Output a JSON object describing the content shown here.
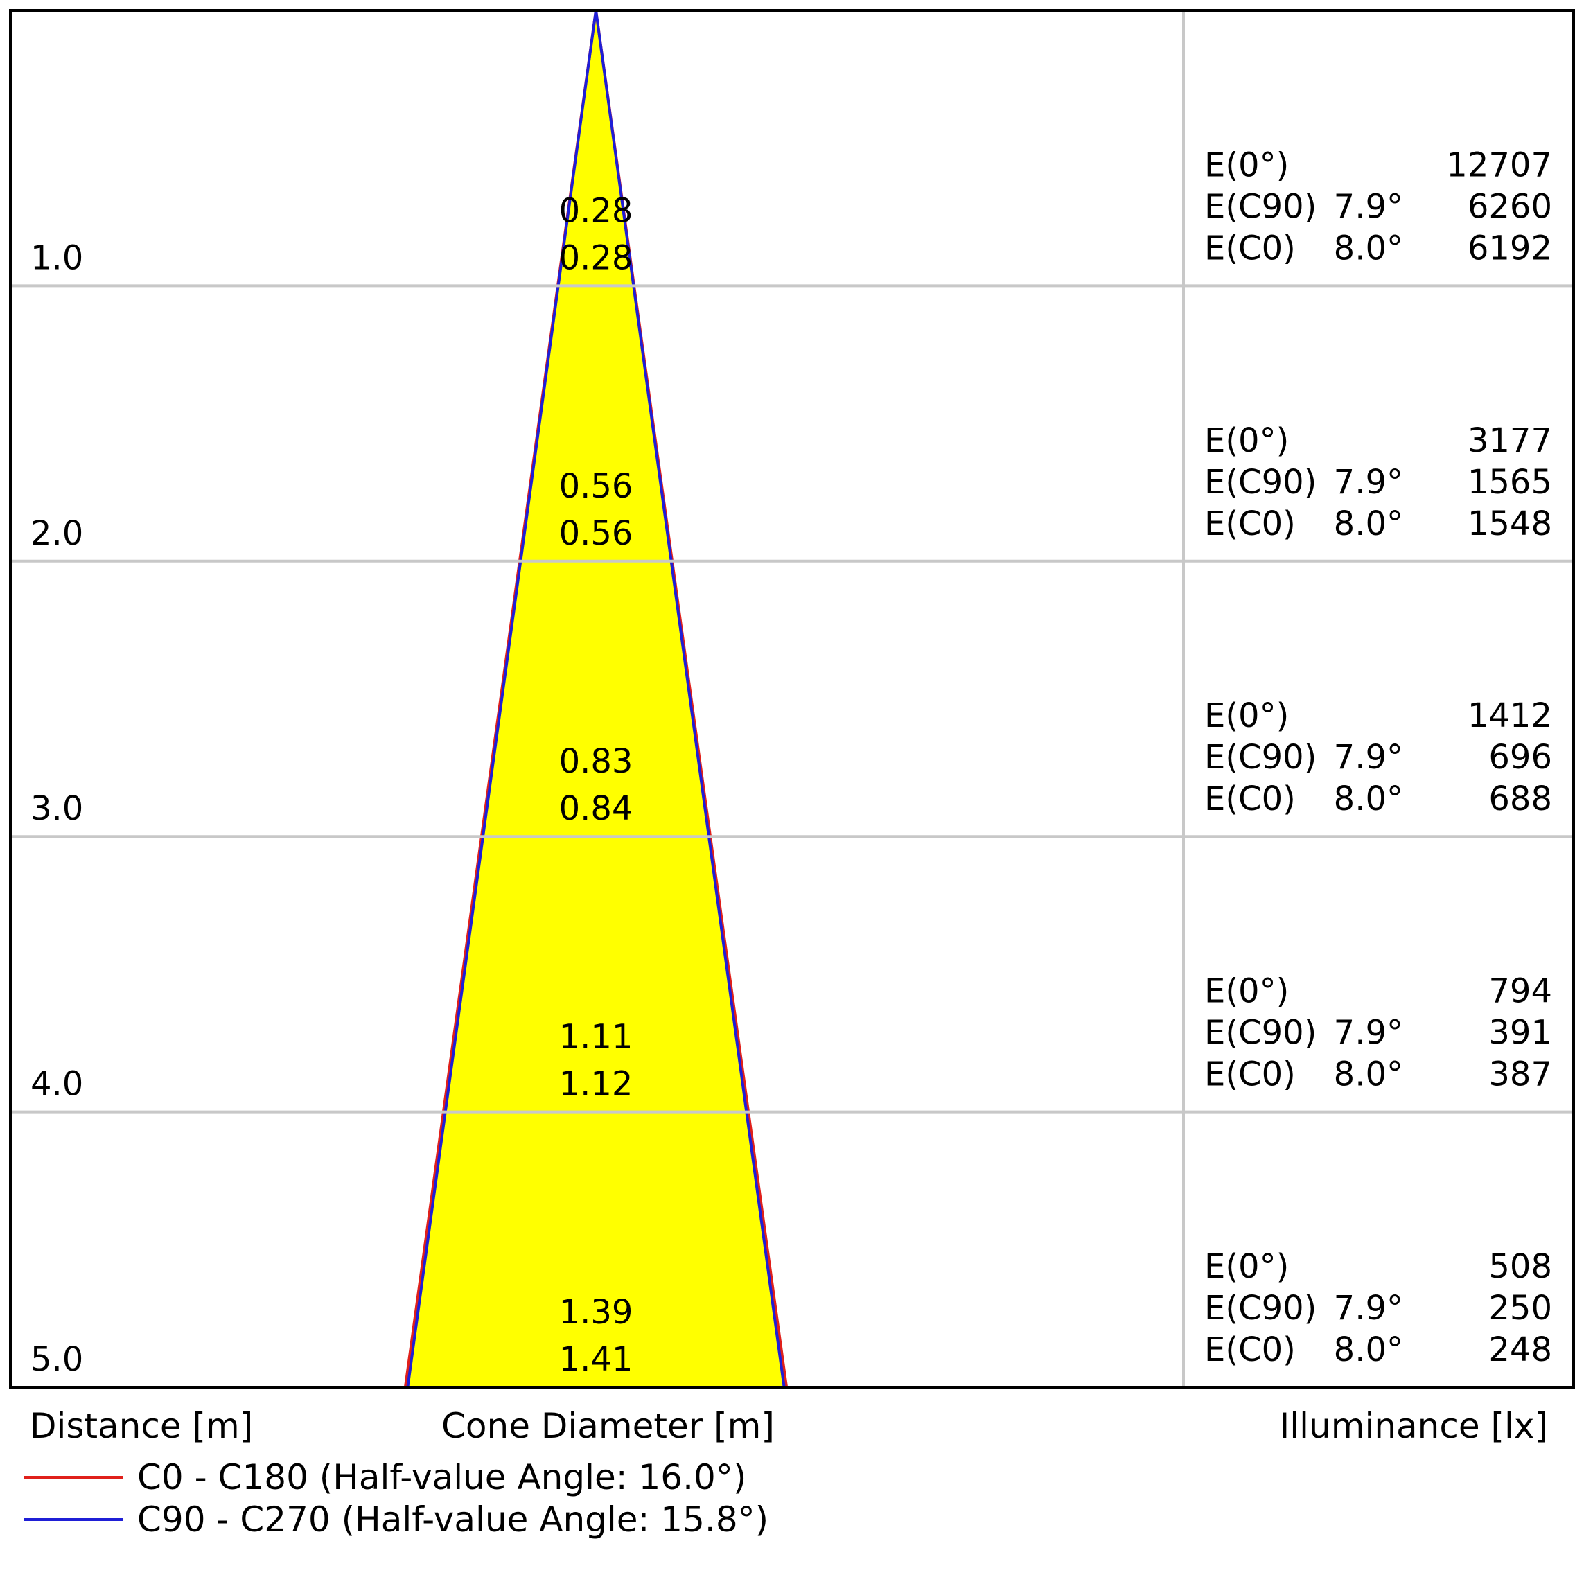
{
  "chart_data": {
    "type": "cone",
    "x_label": "Distance [m]",
    "center_label": "Cone Diameter [m]",
    "right_label": "Illuminance [lx]",
    "distance_range": [
      0,
      5
    ],
    "series": [
      {
        "key": "c0",
        "name": "C0 - C180 (Half-value Angle: 16.0°)",
        "half_value_angle_deg": 16.0,
        "color": "#e0201b"
      },
      {
        "key": "c90",
        "name": "C90 - C270 (Half-value Angle: 15.8°)",
        "half_value_angle_deg": 15.8,
        "color": "#1f1fd6"
      }
    ],
    "rows": [
      {
        "distance": "1.0",
        "diameter_c90": "0.28",
        "diameter_c0": "0.28",
        "e0_label": "E(0°)",
        "e0": "12707",
        "ec90_label": "E(C90)",
        "ec90_angle": "7.9°",
        "ec90": "6260",
        "ec0_label": "E(C0)",
        "ec0_angle": "8.0°",
        "ec0": "6192"
      },
      {
        "distance": "2.0",
        "diameter_c90": "0.56",
        "diameter_c0": "0.56",
        "e0_label": "E(0°)",
        "e0": "3177",
        "ec90_label": "E(C90)",
        "ec90_angle": "7.9°",
        "ec90": "1565",
        "ec0_label": "E(C0)",
        "ec0_angle": "8.0°",
        "ec0": "1548"
      },
      {
        "distance": "3.0",
        "diameter_c90": "0.83",
        "diameter_c0": "0.84",
        "e0_label": "E(0°)",
        "e0": "1412",
        "ec90_label": "E(C90)",
        "ec90_angle": "7.9°",
        "ec90": "696",
        "ec0_label": "E(C0)",
        "ec0_angle": "8.0°",
        "ec0": "688"
      },
      {
        "distance": "4.0",
        "diameter_c90": "1.11",
        "diameter_c0": "1.12",
        "e0_label": "E(0°)",
        "e0": "794",
        "ec90_label": "E(C90)",
        "ec90_angle": "7.9°",
        "ec90": "391",
        "ec0_label": "E(C0)",
        "ec0_angle": "8.0°",
        "ec0": "387"
      },
      {
        "distance": "5.0",
        "diameter_c90": "1.39",
        "diameter_c0": "1.41",
        "e0_label": "E(0°)",
        "e0": "508",
        "ec90_label": "E(C90)",
        "ec90_angle": "7.9°",
        "ec90": "250",
        "ec0_label": "E(C0)",
        "ec0_angle": "8.0°",
        "ec0": "248"
      }
    ],
    "fill_color": "#ffff00",
    "grid_color": "#c8c8c8"
  }
}
